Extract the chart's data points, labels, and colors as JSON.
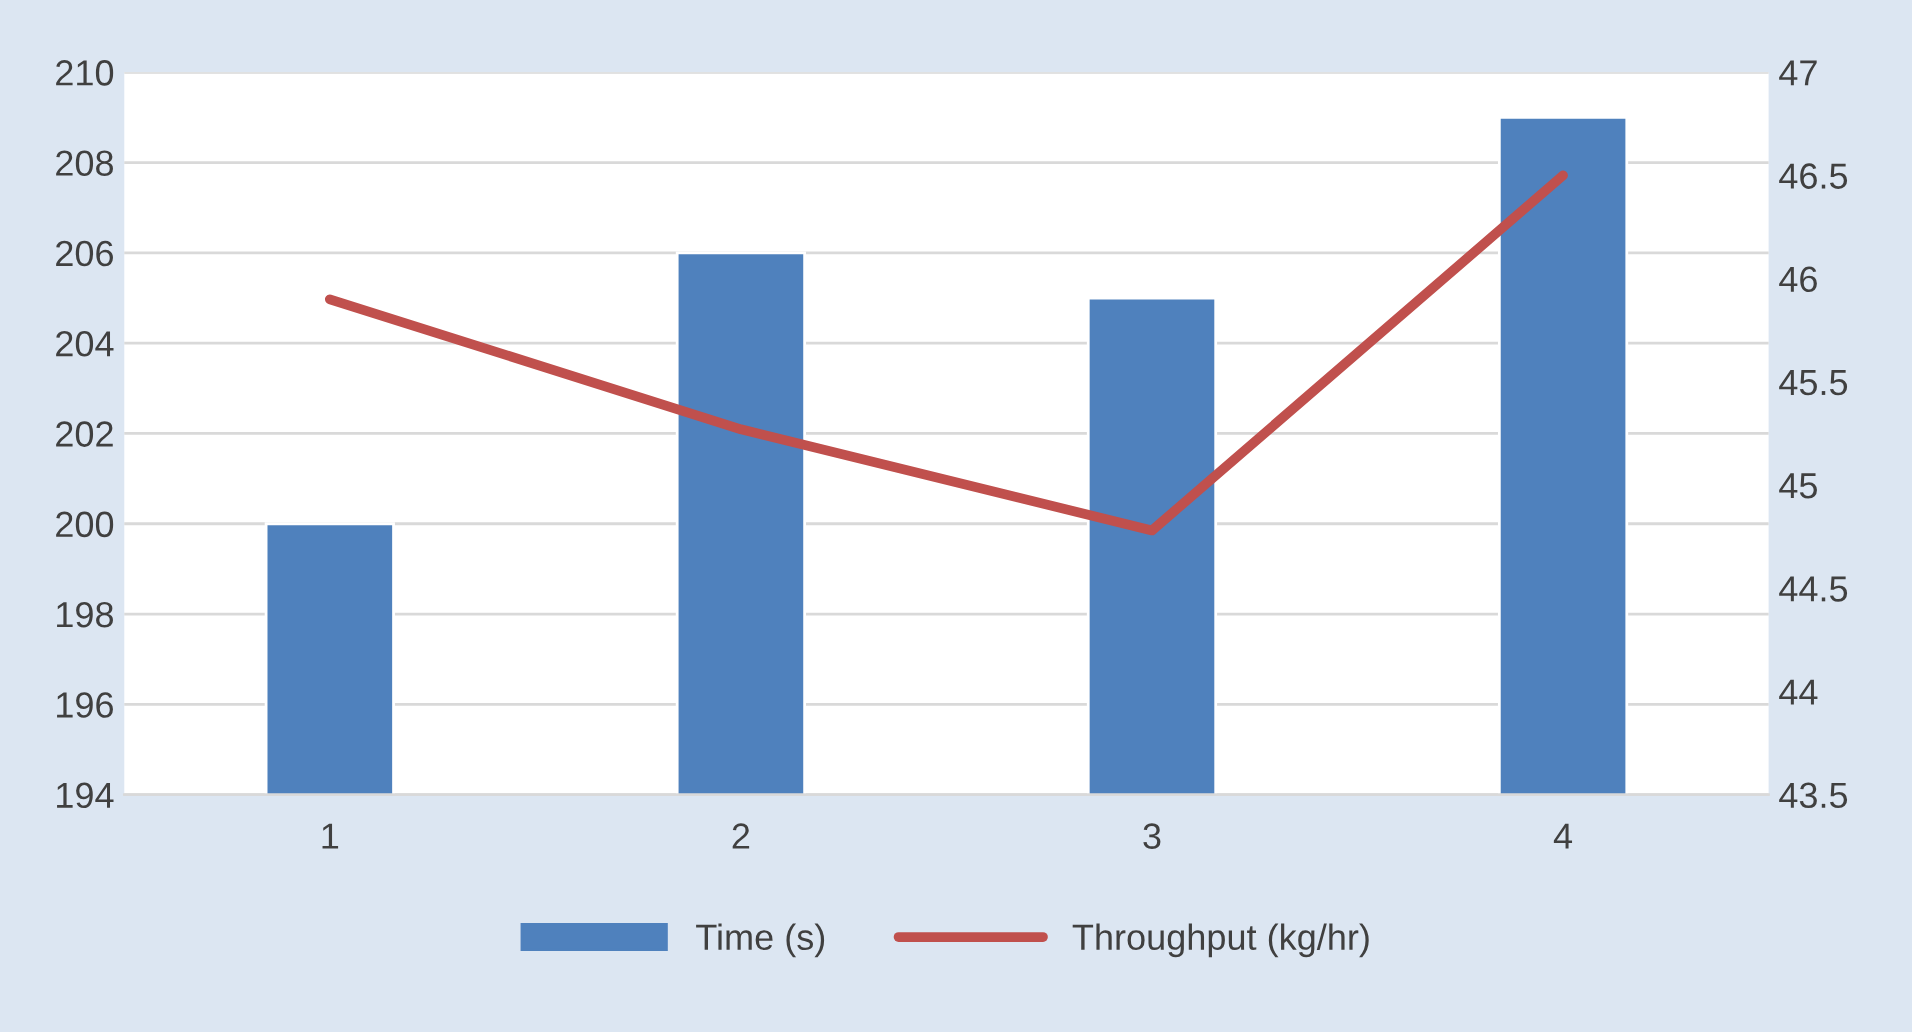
{
  "chart_data": {
    "type": "bar",
    "categories": [
      "1",
      "2",
      "3",
      "4"
    ],
    "series": [
      {
        "name": "Time (s)",
        "color": "#4f81bd",
        "values": [
          200,
          206,
          205,
          209
        ]
      },
      {
        "name": "Throughput (kg/hr)",
        "type": "line",
        "color": "#c0504d",
        "axis": "y2",
        "values": [
          45.9,
          45.27,
          44.78,
          46.5
        ]
      }
    ],
    "ylim": [
      194,
      210
    ],
    "yticks": [
      194,
      196,
      198,
      200,
      202,
      204,
      206,
      208,
      210
    ],
    "y2lim": [
      43.5,
      47
    ],
    "y2ticks": [
      43.5,
      44,
      44.5,
      45,
      45.5,
      46,
      46.5,
      47
    ],
    "grid": "y",
    "legend": "bottom",
    "marker": "none",
    "line_style": "solid"
  }
}
